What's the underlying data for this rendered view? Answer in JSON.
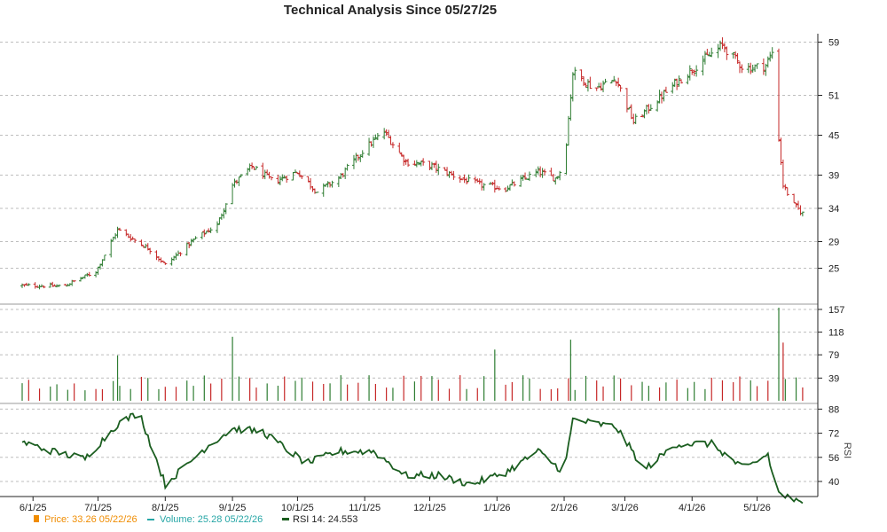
{
  "chart_data": {
    "type": "line",
    "title": "Technical Analysis Since 05/27/25",
    "x_ticks": [
      "6/1/25",
      "7/1/25",
      "8/1/25",
      "9/1/25",
      "10/1/25",
      "11/1/25",
      "12/1/25",
      "1/1/26",
      "2/1/26",
      "3/1/26",
      "4/1/26",
      "5/1/26"
    ],
    "price_panel": {
      "y_ticks": [
        25,
        29,
        34,
        39,
        45,
        51,
        59
      ],
      "ylim": [
        20,
        60
      ],
      "grid": true,
      "series": [
        {
          "date": "2025-05-27",
          "price": 22.4
        },
        {
          "date": "2025-06-15",
          "price": 22.3
        },
        {
          "date": "2025-06-30",
          "price": 24.5
        },
        {
          "date": "2025-07-10",
          "price": 30.8
        },
        {
          "date": "2025-07-25",
          "price": 27.8
        },
        {
          "date": "2025-08-01",
          "price": 25.5
        },
        {
          "date": "2025-08-15",
          "price": 29.5
        },
        {
          "date": "2025-08-25",
          "price": 31.5
        },
        {
          "date": "2025-09-01",
          "price": 37.5
        },
        {
          "date": "2025-09-10",
          "price": 40.3
        },
        {
          "date": "2025-09-20",
          "price": 38.0
        },
        {
          "date": "2025-10-01",
          "price": 39.5
        },
        {
          "date": "2025-10-10",
          "price": 36.5
        },
        {
          "date": "2025-10-20",
          "price": 38.5
        },
        {
          "date": "2025-11-01",
          "price": 43.0
        },
        {
          "date": "2025-11-10",
          "price": 45.5
        },
        {
          "date": "2025-11-20",
          "price": 41.0
        },
        {
          "date": "2025-12-01",
          "price": 40.5
        },
        {
          "date": "2025-12-15",
          "price": 38.5
        },
        {
          "date": "2025-12-25",
          "price": 37.5
        },
        {
          "date": "2026-01-05",
          "price": 37.0
        },
        {
          "date": "2026-01-20",
          "price": 39.5
        },
        {
          "date": "2026-01-28",
          "price": 38.5
        },
        {
          "date": "2026-02-01",
          "price": 40.5
        },
        {
          "date": "2026-02-05",
          "price": 54.5
        },
        {
          "date": "2026-02-15",
          "price": 52.0
        },
        {
          "date": "2026-02-25",
          "price": 53.5
        },
        {
          "date": "2026-03-05",
          "price": 47.0
        },
        {
          "date": "2026-03-15",
          "price": 50.0
        },
        {
          "date": "2026-03-25",
          "price": 53.0
        },
        {
          "date": "2026-04-05",
          "price": 56.0
        },
        {
          "date": "2026-04-15",
          "price": 58.5
        },
        {
          "date": "2026-04-25",
          "price": 55.0
        },
        {
          "date": "2026-05-05",
          "price": 55.5
        },
        {
          "date": "2026-05-08",
          "price": 57.5
        },
        {
          "date": "2026-05-10",
          "price": 48.0
        },
        {
          "date": "2026-05-13",
          "price": 37.5
        },
        {
          "date": "2026-05-18",
          "price": 34.5
        },
        {
          "date": "2026-05-22",
          "price": 33.26
        }
      ]
    },
    "volume_panel": {
      "y_ticks": [
        39,
        79,
        118,
        157
      ],
      "ylim": [
        0,
        160
      ],
      "notable_bars": [
        {
          "date": "2025-07-11",
          "value": 78
        },
        {
          "date": "2025-09-01",
          "value": 110
        },
        {
          "date": "2026-01-01",
          "value": 88
        },
        {
          "date": "2026-02-05",
          "value": 105
        },
        {
          "date": "2026-05-11",
          "value": 160
        },
        {
          "date": "2026-05-14",
          "value": 100
        }
      ],
      "typical_value": 30
    },
    "rsi_panel": {
      "ylabel": "RSI",
      "y_ticks": [
        40,
        56,
        72,
        88
      ],
      "ylim": [
        30,
        90
      ],
      "series": [
        {
          "date": "2025-05-27",
          "rsi": 66
        },
        {
          "date": "2025-06-10",
          "rsi": 60
        },
        {
          "date": "2025-06-25",
          "rsi": 55
        },
        {
          "date": "2025-07-10",
          "rsi": 78
        },
        {
          "date": "2025-07-20",
          "rsi": 86
        },
        {
          "date": "2025-08-01",
          "rsi": 38
        },
        {
          "date": "2025-08-20",
          "rsi": 63
        },
        {
          "date": "2025-09-01",
          "rsi": 75
        },
        {
          "date": "2025-09-15",
          "rsi": 73
        },
        {
          "date": "2025-10-05",
          "rsi": 52
        },
        {
          "date": "2025-10-20",
          "rsi": 60
        },
        {
          "date": "2025-11-05",
          "rsi": 60
        },
        {
          "date": "2025-11-20",
          "rsi": 44
        },
        {
          "date": "2025-12-05",
          "rsi": 44
        },
        {
          "date": "2025-12-20",
          "rsi": 38
        },
        {
          "date": "2026-01-05",
          "rsi": 46
        },
        {
          "date": "2026-01-20",
          "rsi": 60
        },
        {
          "date": "2026-02-01",
          "rsi": 46
        },
        {
          "date": "2026-02-05",
          "rsi": 81
        },
        {
          "date": "2026-02-25",
          "rsi": 76
        },
        {
          "date": "2026-03-10",
          "rsi": 48
        },
        {
          "date": "2026-03-25",
          "rsi": 65
        },
        {
          "date": "2026-04-10",
          "rsi": 65
        },
        {
          "date": "2026-04-25",
          "rsi": 48
        },
        {
          "date": "2026-05-06",
          "rsi": 58
        },
        {
          "date": "2026-05-10",
          "rsi": 33
        },
        {
          "date": "2026-05-22",
          "rsi": 24.553
        }
      ]
    },
    "legend": {
      "price": "Price: 33.26  05/22/26",
      "volume": "Volume: 25.28  05/22/26",
      "rsi": "RSI 14: 24.553"
    },
    "colors": {
      "up": "#2e7d32",
      "down": "#c62828",
      "rsi_line": "#1b5e20",
      "legend_price": "#f08c00",
      "legend_volume": "#26a6a6",
      "legend_rsi": "#222222",
      "grid": "#bdbdbd"
    }
  }
}
